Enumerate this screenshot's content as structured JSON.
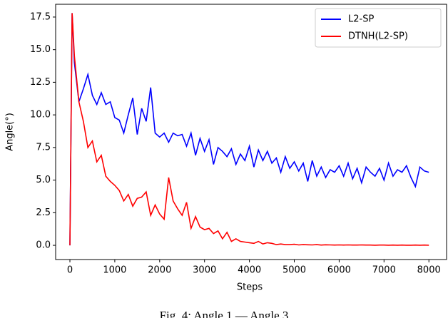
{
  "chart_data": {
    "type": "line",
    "xlabel": "Steps",
    "ylabel": "Angle(°)",
    "caption": "Fig. 4: Angle 1 — Angle 3",
    "x": [
      0,
      50,
      100,
      200,
      300,
      400,
      500,
      600,
      700,
      800,
      900,
      1000,
      1100,
      1200,
      1300,
      1400,
      1500,
      1600,
      1700,
      1800,
      1900,
      2000,
      2100,
      2200,
      2300,
      2400,
      2500,
      2600,
      2700,
      2800,
      2900,
      3000,
      3100,
      3200,
      3300,
      3400,
      3500,
      3600,
      3700,
      3800,
      3900,
      4000,
      4100,
      4200,
      4300,
      4400,
      4500,
      4600,
      4700,
      4800,
      4900,
      5000,
      5100,
      5200,
      5300,
      5400,
      5500,
      5600,
      5700,
      5800,
      5900,
      6000,
      6100,
      6200,
      6300,
      6400,
      6500,
      6600,
      6700,
      6800,
      6900,
      7000,
      7100,
      7200,
      7300,
      7400,
      7500,
      7600,
      7700,
      7800,
      7900,
      8000
    ],
    "series": [
      {
        "name": "L2-SP",
        "color": "#0000ff",
        "values": [
          0,
          17.8,
          14,
          11,
          12,
          13.1,
          11.5,
          10.8,
          11.7,
          10.8,
          11,
          9.8,
          9.6,
          8.6,
          10,
          11.3,
          8.5,
          10.5,
          9.5,
          12.1,
          8.6,
          8.3,
          8.6,
          7.9,
          8.6,
          8.4,
          8.5,
          7.6,
          8.6,
          6.9,
          8.2,
          7.2,
          8.1,
          6.2,
          7.5,
          7.2,
          6.8,
          7.4,
          6.2,
          7.0,
          6.5,
          7.6,
          6.0,
          7.3,
          6.5,
          7.2,
          6.3,
          6.7,
          5.6,
          6.8,
          5.9,
          6.4,
          5.7,
          6.3,
          4.9,
          6.5,
          5.3,
          6.0,
          5.2,
          5.8,
          5.6,
          6.1,
          5.3,
          6.3,
          5.1,
          5.9,
          4.8,
          6.0,
          5.6,
          5.3,
          5.9,
          5.0,
          6.3,
          5.3,
          5.8,
          5.6,
          6.1,
          5.2,
          4.5,
          6.0,
          5.7,
          5.6
        ]
      },
      {
        "name": "DTNH(L2-SP)",
        "color": "#ff0000",
        "values": [
          0,
          17.8,
          14.5,
          11,
          9.5,
          7.5,
          8,
          6.4,
          6.9,
          5.3,
          4.9,
          4.6,
          4.2,
          3.4,
          3.9,
          3.0,
          3.6,
          3.7,
          4.1,
          2.3,
          3.1,
          2.4,
          2.0,
          5.2,
          3.4,
          2.8,
          2.3,
          3.3,
          1.3,
          2.2,
          1.4,
          1.2,
          1.3,
          0.9,
          1.1,
          0.5,
          1.0,
          0.3,
          0.5,
          0.3,
          0.25,
          0.2,
          0.15,
          0.3,
          0.1,
          0.2,
          0.15,
          0.05,
          0.1,
          0.05,
          0.05,
          0.08,
          0.03,
          0.05,
          0.04,
          0.03,
          0.05,
          0.02,
          0.04,
          0.03,
          0.02,
          0.03,
          0.02,
          0.03,
          0.02,
          0.02,
          0.03,
          0.02,
          0.02,
          0.01,
          0.02,
          0.02,
          0.01,
          0.02,
          0.01,
          0.02,
          0.01,
          0.01,
          0.02,
          0.01,
          0.02,
          0.01
        ]
      }
    ],
    "xlim": [
      -318,
      8394
    ],
    "ylim": [
      -1.09,
      18.48
    ],
    "xticks": [
      0,
      1000,
      2000,
      3000,
      4000,
      5000,
      6000,
      7000,
      8000
    ],
    "yticks": [
      {
        "value": 0,
        "label": "0.0"
      },
      {
        "value": 2.5,
        "label": "2.5"
      },
      {
        "value": 5,
        "label": "5.0"
      },
      {
        "value": 7.5,
        "label": "7.5"
      },
      {
        "value": 10,
        "label": "10.0"
      },
      {
        "value": 12.5,
        "label": "12.5"
      },
      {
        "value": 15,
        "label": "15.0"
      },
      {
        "value": 17.5,
        "label": "17.5"
      }
    ],
    "legend": "upper right",
    "grid": false
  }
}
